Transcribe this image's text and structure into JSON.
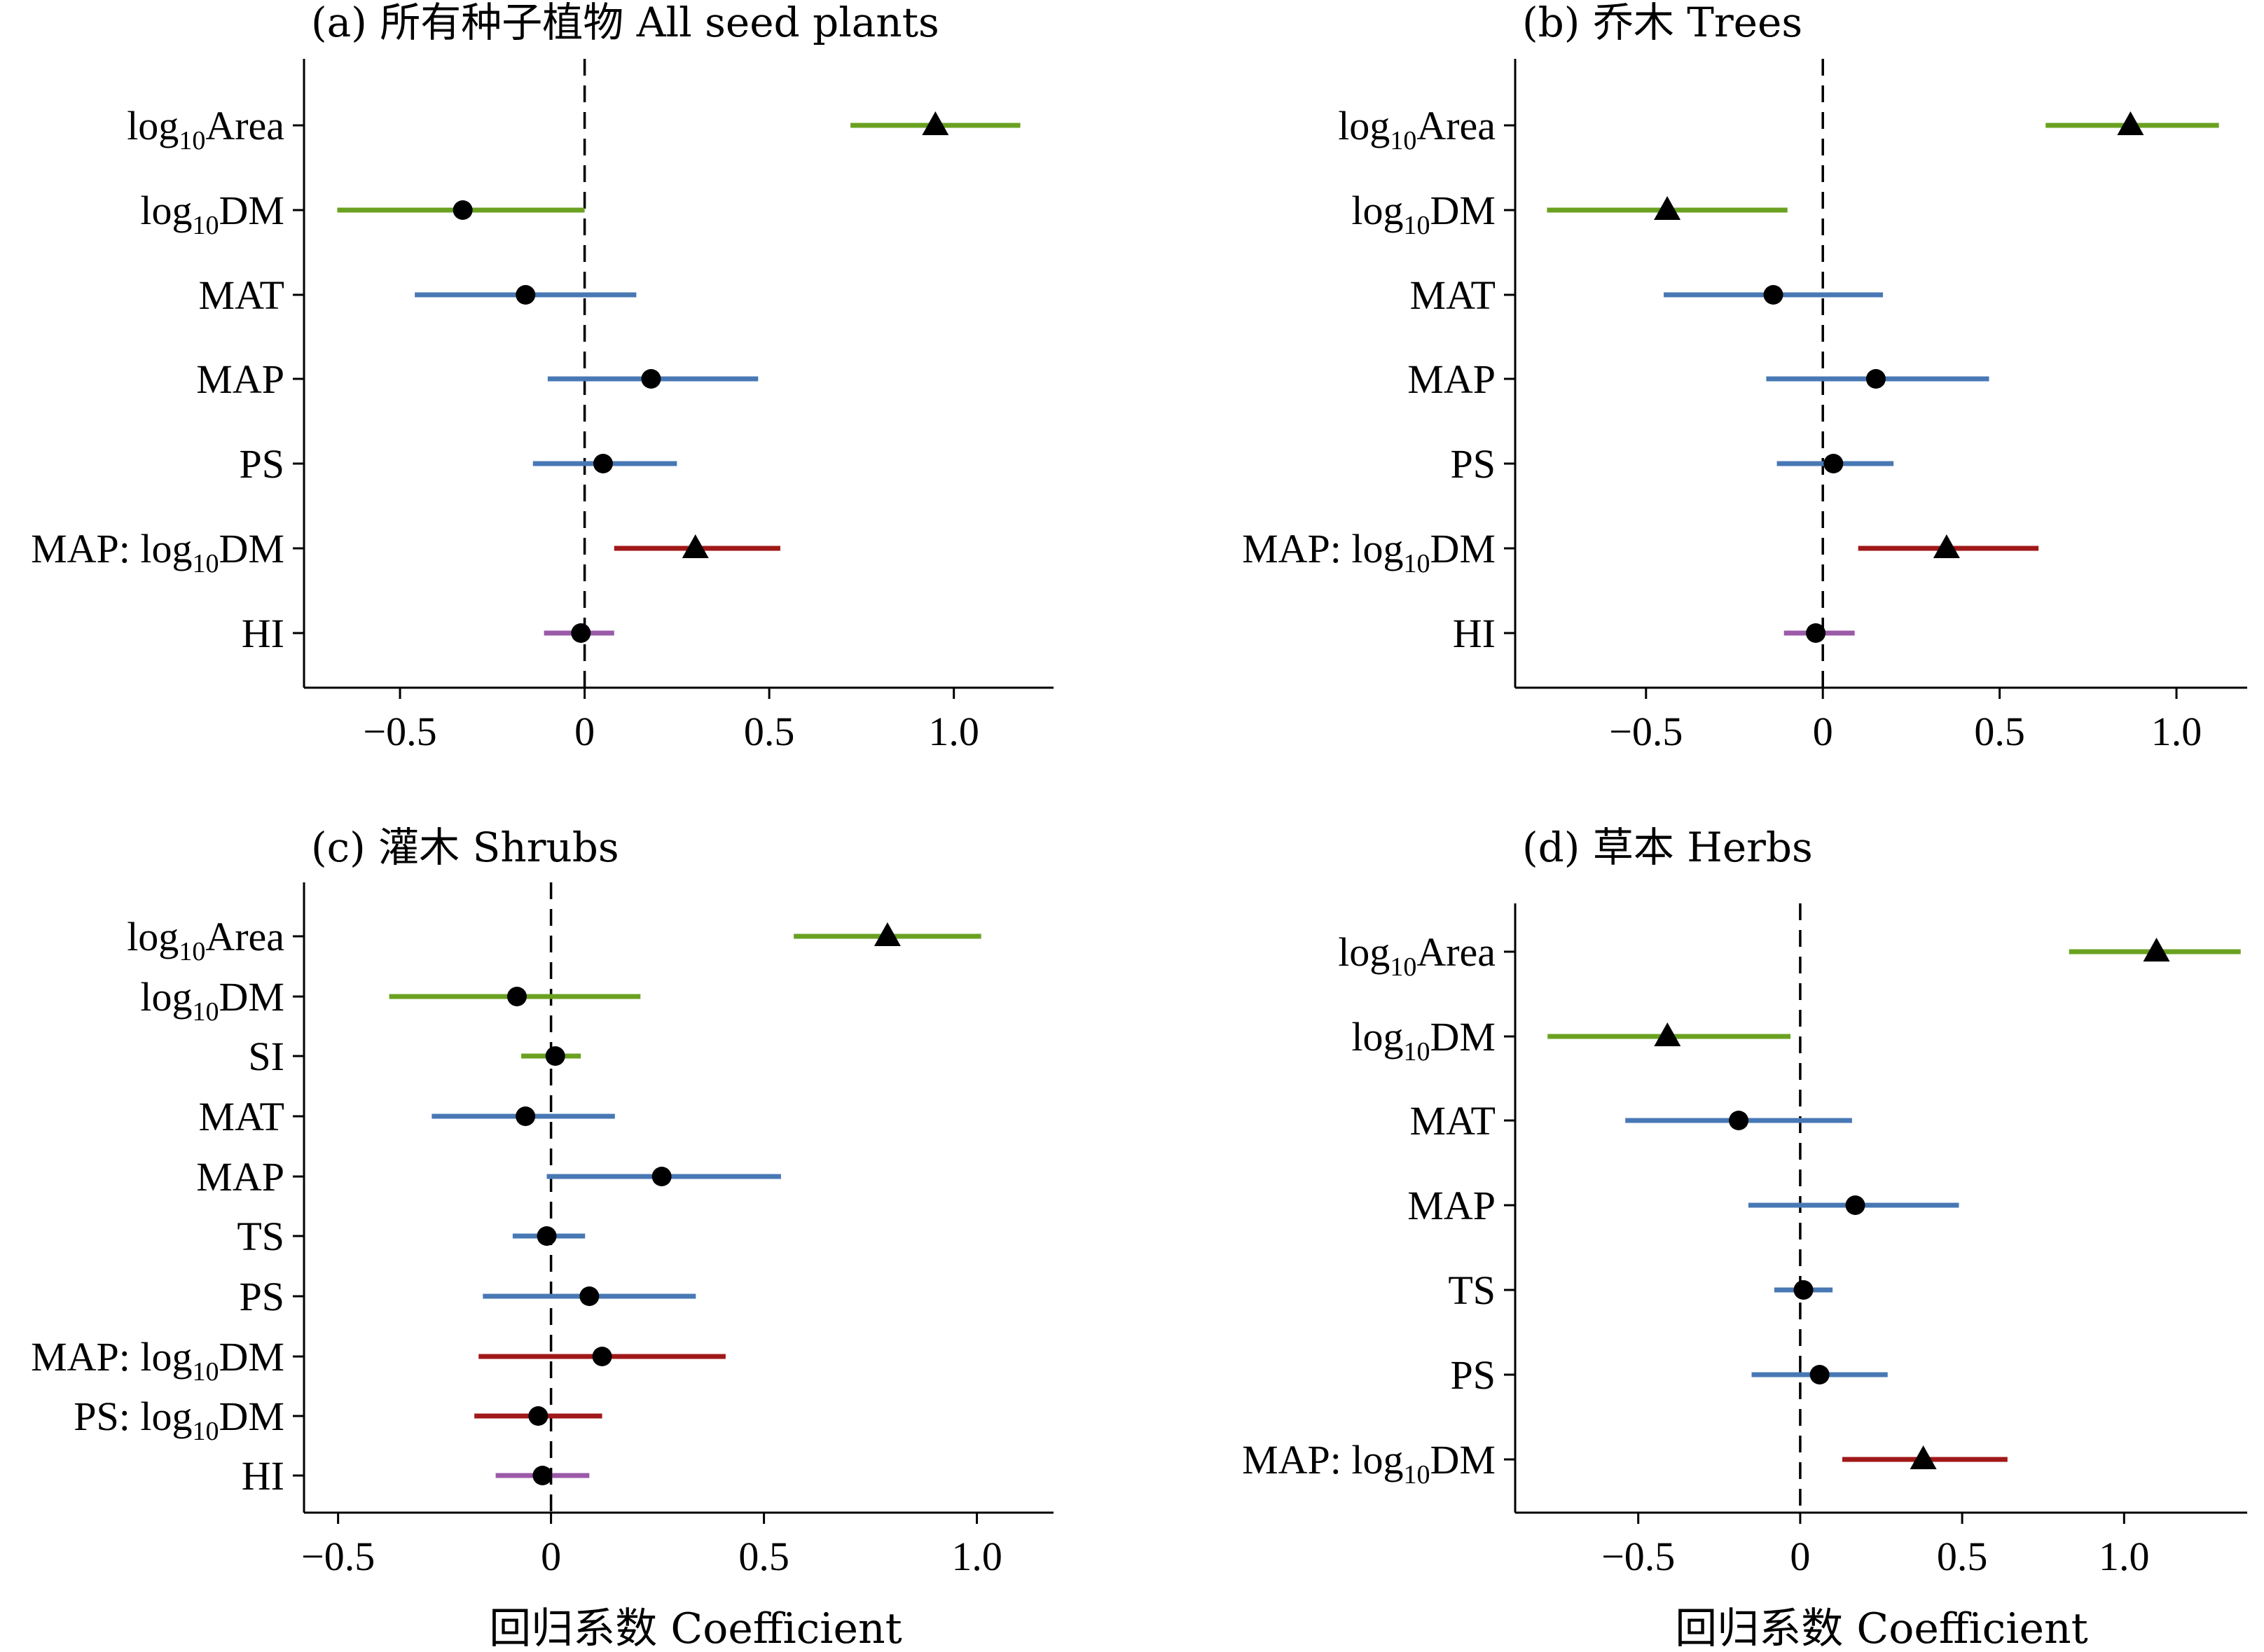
{
  "figure": {
    "xlabel_bottom_left": "回归系数 Coefficient",
    "xlabel_bottom_right": "回归系数 Coefficient"
  },
  "colors": {
    "area_dm": "#6aa121",
    "climate": "#4878b4",
    "interaction": "#a01818",
    "hi": "#9b5aa8",
    "marker": "#000000"
  },
  "chart_data": [
    {
      "type": "forest",
      "title": "(a) 所有种子植物 All seed plants",
      "xlabel": "",
      "xlim": [
        -0.76,
        1.27
      ],
      "xticks": [
        -0.5,
        0,
        0.5,
        1.0
      ],
      "xtick_labels": [
        "−0.5",
        "0",
        "0.5",
        "1.0"
      ],
      "reference_line": 0,
      "rows": [
        {
          "label": "log10Area",
          "base": "log",
          "sub": "10",
          "rest": "Area",
          "est": 0.95,
          "lo": 0.72,
          "hi": 1.18,
          "marker": "triangle",
          "group": "area_dm"
        },
        {
          "label": "log10DM",
          "base": "log",
          "sub": "10",
          "rest": "DM",
          "est": -0.33,
          "lo": -0.67,
          "hi": 0.0,
          "marker": "circle",
          "group": "area_dm"
        },
        {
          "label": "MAT",
          "base": "MAT",
          "sub": "",
          "rest": "",
          "est": -0.16,
          "lo": -0.46,
          "hi": 0.14,
          "marker": "circle",
          "group": "climate"
        },
        {
          "label": "MAP",
          "base": "MAP",
          "sub": "",
          "rest": "",
          "est": 0.18,
          "lo": -0.1,
          "hi": 0.47,
          "marker": "circle",
          "group": "climate"
        },
        {
          "label": "PS",
          "base": "PS",
          "sub": "",
          "rest": "",
          "est": 0.05,
          "lo": -0.14,
          "hi": 0.25,
          "marker": "circle",
          "group": "climate"
        },
        {
          "label": "MAP: log10DM",
          "base": "MAP: log",
          "sub": "10",
          "rest": "DM",
          "est": 0.3,
          "lo": 0.08,
          "hi": 0.53,
          "marker": "triangle",
          "group": "interaction"
        },
        {
          "label": "HI",
          "base": "HI",
          "sub": "",
          "rest": "",
          "est": -0.01,
          "lo": -0.11,
          "hi": 0.08,
          "marker": "circle",
          "group": "hi"
        }
      ]
    },
    {
      "type": "forest",
      "title": "(b) 乔木 Trees",
      "xlabel": "",
      "xlim": [
        -0.87,
        1.2
      ],
      "xticks": [
        -0.5,
        0,
        0.5,
        1.0
      ],
      "xtick_labels": [
        "−0.5",
        "0",
        "0.5",
        "1.0"
      ],
      "reference_line": 0,
      "rows": [
        {
          "label": "log10Area",
          "base": "log",
          "sub": "10",
          "rest": "Area",
          "est": 0.87,
          "lo": 0.63,
          "hi": 1.12,
          "marker": "triangle",
          "group": "area_dm"
        },
        {
          "label": "log10DM",
          "base": "log",
          "sub": "10",
          "rest": "DM",
          "est": -0.44,
          "lo": -0.78,
          "hi": -0.1,
          "marker": "triangle",
          "group": "area_dm"
        },
        {
          "label": "MAT",
          "base": "MAT",
          "sub": "",
          "rest": "",
          "est": -0.14,
          "lo": -0.45,
          "hi": 0.17,
          "marker": "circle",
          "group": "climate"
        },
        {
          "label": "MAP",
          "base": "MAP",
          "sub": "",
          "rest": "",
          "est": 0.15,
          "lo": -0.16,
          "hi": 0.47,
          "marker": "circle",
          "group": "climate"
        },
        {
          "label": "PS",
          "base": "PS",
          "sub": "",
          "rest": "",
          "est": 0.03,
          "lo": -0.13,
          "hi": 0.2,
          "marker": "circle",
          "group": "climate"
        },
        {
          "label": "MAP: log10DM",
          "base": "MAP: log",
          "sub": "10",
          "rest": "DM",
          "est": 0.35,
          "lo": 0.1,
          "hi": 0.61,
          "marker": "triangle",
          "group": "interaction"
        },
        {
          "label": "HI",
          "base": "HI",
          "sub": "",
          "rest": "",
          "est": -0.02,
          "lo": -0.11,
          "hi": 0.09,
          "marker": "circle",
          "group": "hi"
        }
      ]
    },
    {
      "type": "forest",
      "title": "(c) 灌木 Shrubs",
      "xlabel": "回归系数 Coefficient",
      "xlim": [
        -0.58,
        1.18
      ],
      "xticks": [
        -0.5,
        0,
        0.5,
        1.0
      ],
      "xtick_labels": [
        "−0.5",
        "0",
        "0.5",
        "1.0"
      ],
      "reference_line": 0,
      "rows": [
        {
          "label": "log10Area",
          "base": "log",
          "sub": "10",
          "rest": "Area",
          "est": 0.79,
          "lo": 0.57,
          "hi": 1.01,
          "marker": "triangle",
          "group": "area_dm"
        },
        {
          "label": "log10DM",
          "base": "log",
          "sub": "10",
          "rest": "DM",
          "est": -0.08,
          "lo": -0.38,
          "hi": 0.21,
          "marker": "circle",
          "group": "area_dm"
        },
        {
          "label": "SI",
          "base": "SI",
          "sub": "",
          "rest": "",
          "est": 0.01,
          "lo": -0.07,
          "hi": 0.07,
          "marker": "circle",
          "group": "area_dm"
        },
        {
          "label": "MAT",
          "base": "MAT",
          "sub": "",
          "rest": "",
          "est": -0.06,
          "lo": -0.28,
          "hi": 0.15,
          "marker": "circle",
          "group": "climate"
        },
        {
          "label": "MAP",
          "base": "MAP",
          "sub": "",
          "rest": "",
          "est": 0.26,
          "lo": -0.01,
          "hi": 0.54,
          "marker": "circle",
          "group": "climate"
        },
        {
          "label": "TS",
          "base": "TS",
          "sub": "",
          "rest": "",
          "est": -0.01,
          "lo": -0.09,
          "hi": 0.08,
          "marker": "circle",
          "group": "climate"
        },
        {
          "label": "PS",
          "base": "PS",
          "sub": "",
          "rest": "",
          "est": 0.09,
          "lo": -0.16,
          "hi": 0.34,
          "marker": "circle",
          "group": "climate"
        },
        {
          "label": "MAP: log10DM",
          "base": "MAP: log",
          "sub": "10",
          "rest": "DM",
          "est": 0.12,
          "lo": -0.17,
          "hi": 0.41,
          "marker": "circle",
          "group": "interaction"
        },
        {
          "label": "PS: log10DM",
          "base": "PS: log",
          "sub": "10",
          "rest": "DM",
          "est": -0.03,
          "lo": -0.18,
          "hi": 0.12,
          "marker": "circle",
          "group": "interaction"
        },
        {
          "label": "HI",
          "base": "HI",
          "sub": "",
          "rest": "",
          "est": -0.02,
          "lo": -0.13,
          "hi": 0.09,
          "marker": "circle",
          "group": "hi"
        }
      ]
    },
    {
      "type": "forest",
      "title": "(d) 草本 Herbs",
      "xlabel": "回归系数 Coefficient",
      "xlim": [
        -0.88,
        1.38
      ],
      "xticks": [
        -0.5,
        0,
        0.5,
        1.0
      ],
      "xtick_labels": [
        "−0.5",
        "0",
        "0.5",
        "1.0"
      ],
      "reference_line": 0,
      "rows": [
        {
          "label": "log10Area",
          "base": "log",
          "sub": "10",
          "rest": "Area",
          "est": 1.1,
          "lo": 0.83,
          "hi": 1.36,
          "marker": "triangle",
          "group": "area_dm"
        },
        {
          "label": "log10DM",
          "base": "log",
          "sub": "10",
          "rest": "DM",
          "est": -0.41,
          "lo": -0.78,
          "hi": -0.03,
          "marker": "triangle",
          "group": "area_dm"
        },
        {
          "label": "MAT",
          "base": "MAT",
          "sub": "",
          "rest": "",
          "est": -0.19,
          "lo": -0.54,
          "hi": 0.16,
          "marker": "circle",
          "group": "climate"
        },
        {
          "label": "MAP",
          "base": "MAP",
          "sub": "",
          "rest": "",
          "est": 0.17,
          "lo": -0.16,
          "hi": 0.49,
          "marker": "circle",
          "group": "climate"
        },
        {
          "label": "TS",
          "base": "TS",
          "sub": "",
          "rest": "",
          "est": 0.01,
          "lo": -0.08,
          "hi": 0.1,
          "marker": "circle",
          "group": "climate"
        },
        {
          "label": "PS",
          "base": "PS",
          "sub": "",
          "rest": "",
          "est": 0.06,
          "lo": -0.15,
          "hi": 0.27,
          "marker": "circle",
          "group": "climate"
        },
        {
          "label": "MAP: log10DM",
          "base": "MAP: log",
          "sub": "10",
          "rest": "DM",
          "est": 0.38,
          "lo": 0.13,
          "hi": 0.64,
          "marker": "triangle",
          "group": "interaction"
        }
      ]
    }
  ]
}
